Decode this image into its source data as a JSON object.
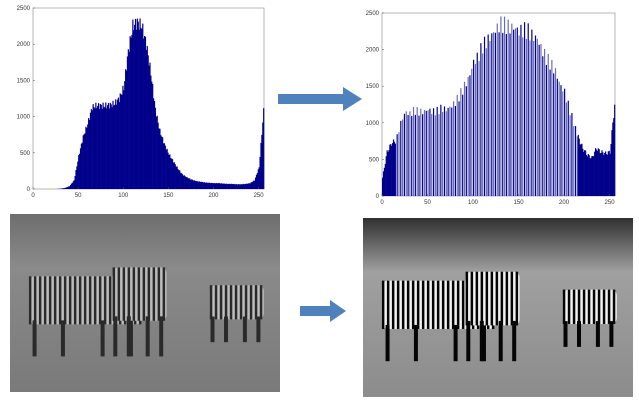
{
  "colors": {
    "bars": "#00008b",
    "bars_light": "#6a6ab8",
    "arrow": "#4f81bd"
  },
  "chart_data": [
    {
      "type": "bar",
      "xlim": [
        0,
        256
      ],
      "ylim": [
        0,
        2500
      ],
      "xticks": [
        "0",
        "50",
        "100",
        "150",
        "200",
        "250"
      ],
      "yticks": [
        "0",
        "500",
        "1000",
        "1500",
        "2000",
        "2500"
      ],
      "x_step": 5,
      "values": [
        0,
        0,
        0,
        0,
        0,
        0,
        5,
        15,
        40,
        120,
        450,
        720,
        900,
        1130,
        1150,
        1150,
        1150,
        1160,
        1180,
        1250,
        1400,
        1900,
        2250,
        2300,
        2250,
        2000,
        1600,
        1100,
        800,
        620,
        480,
        380,
        280,
        200,
        160,
        130,
        110,
        100,
        90,
        85,
        80,
        80,
        75,
        70,
        70,
        65,
        65,
        70,
        80,
        120,
        300,
        1080
      ]
    },
    {
      "type": "bar",
      "xlim": [
        0,
        256
      ],
      "ylim": [
        0,
        2500
      ],
      "xticks": [
        "0",
        "50",
        "100",
        "150",
        "200",
        "250"
      ],
      "yticks": [
        "0",
        "500",
        "1000",
        "1500",
        "2000",
        "2500"
      ],
      "x_step": 5,
      "values": [
        250,
        600,
        720,
        760,
        1000,
        1150,
        1120,
        1170,
        1150,
        1150,
        1180,
        1150,
        1160,
        1200,
        1180,
        1220,
        1280,
        1380,
        1500,
        1620,
        1830,
        1900,
        2050,
        2120,
        2200,
        2280,
        2350,
        2330,
        2300,
        2300,
        2250,
        2270,
        2250,
        2180,
        2150,
        2000,
        1880,
        1800,
        1700,
        1520,
        1420,
        1200,
        1000,
        800,
        650,
        560,
        520,
        650,
        600,
        580,
        600,
        1250
      ]
    }
  ],
  "images": [
    {
      "subject": "zebras-original"
    },
    {
      "subject": "zebras-equalized"
    }
  ]
}
